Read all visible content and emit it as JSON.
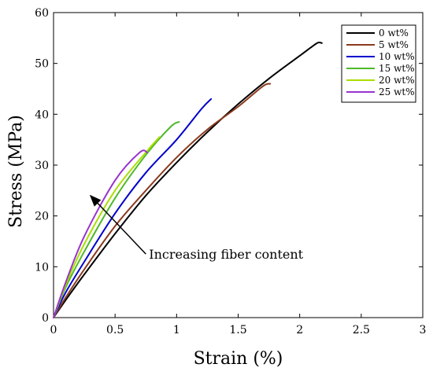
{
  "chart_data": {
    "type": "line",
    "title": "",
    "xlabel": "Strain (%)",
    "ylabel": "Stress (MPa)",
    "xlim": [
      0,
      3
    ],
    "ylim": [
      0,
      60
    ],
    "x_ticks": [
      0,
      0.5,
      1,
      1.5,
      2,
      2.5,
      3
    ],
    "y_ticks": [
      0,
      10,
      20,
      30,
      40,
      50,
      60
    ],
    "x_tick_labels": [
      "0",
      "0.5",
      "1",
      "1.5",
      "2",
      "2.5",
      "3"
    ],
    "y_tick_labels": [
      "0",
      "10",
      "20",
      "30",
      "40",
      "50",
      "60"
    ],
    "grid": false,
    "legend_position": "top-right",
    "series": [
      {
        "name": "0 wt%",
        "color": "#000000",
        "x": [
          0,
          0.1,
          0.25,
          0.5,
          0.75,
          1.0,
          1.25,
          1.5,
          1.75,
          2.0,
          2.1,
          2.15,
          2.18
        ],
        "y": [
          0,
          3.5,
          8.5,
          16.5,
          24,
          30.5,
          36.5,
          42,
          47,
          51.5,
          53.3,
          54.1,
          54
        ]
      },
      {
        "name": "5 wt%",
        "color": "#8b3a1e",
        "x": [
          0,
          0.1,
          0.25,
          0.5,
          0.75,
          1.0,
          1.25,
          1.5,
          1.7,
          1.76
        ],
        "y": [
          0,
          4,
          9.5,
          18,
          25,
          31.5,
          37,
          41.5,
          45.5,
          46
        ]
      },
      {
        "name": "10 wt%",
        "color": "#0000cc",
        "x": [
          0,
          0.1,
          0.25,
          0.5,
          0.75,
          1.0,
          1.2,
          1.28
        ],
        "y": [
          0,
          5,
          11,
          20.5,
          28.5,
          35,
          41,
          43
        ]
      },
      {
        "name": "15 wt%",
        "color": "#4fb82a",
        "x": [
          0,
          0.1,
          0.25,
          0.5,
          0.75,
          0.95,
          1.02
        ],
        "y": [
          0,
          6,
          13,
          23.5,
          32,
          37.5,
          38.5
        ]
      },
      {
        "name": "20 wt%",
        "color": "#aadd00",
        "x": [
          0,
          0.1,
          0.25,
          0.5,
          0.75,
          0.86
        ],
        "y": [
          0,
          6.5,
          14.5,
          25,
          32.5,
          35.5
        ]
      },
      {
        "name": "25 wt%",
        "color": "#9933cc",
        "x": [
          0,
          0.1,
          0.25,
          0.5,
          0.7,
          0.76
        ],
        "y": [
          0,
          7,
          16,
          27,
          32.5,
          32.5
        ]
      }
    ],
    "annotations": [
      {
        "text": "Increasing fiber content",
        "arrow_from": [
          0.75,
          12.5
        ],
        "arrow_to": [
          0.3,
          24
        ]
      }
    ]
  }
}
